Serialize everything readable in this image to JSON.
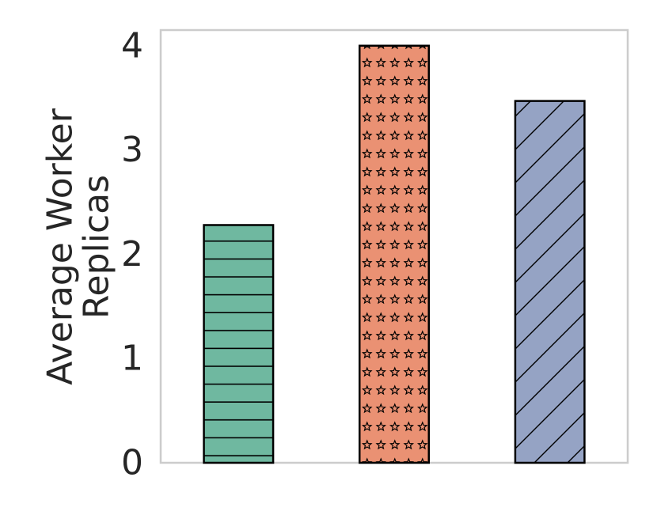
{
  "chart_data": {
    "type": "bar",
    "title": "",
    "xlabel": "",
    "ylabel_lines": [
      "Average Worker",
      "Replicas"
    ],
    "ylim": [
      0,
      4.15
    ],
    "yticks": [
      "0",
      "1",
      "2",
      "3",
      "4"
    ],
    "grid": false,
    "legend": "none",
    "values": [
      2.28,
      4.0,
      3.47
    ],
    "colors": [
      "#6fb8a0",
      "#ea9173",
      "#95a3c4"
    ],
    "hatches": [
      "horizontal-lines",
      "stars",
      "diagonal-lines"
    ]
  }
}
